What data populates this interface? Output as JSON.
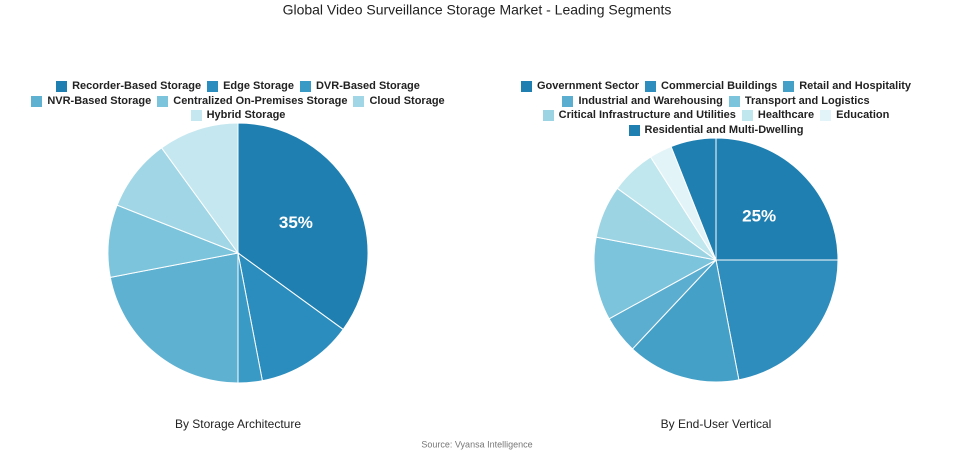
{
  "title": "Global Video Surveillance Storage Market - Leading Segments",
  "source": "Source: Vyansa Intelligence",
  "chart_data": [
    {
      "type": "pie",
      "subtitle": "By Storage Architecture",
      "categories": [
        "Recorder-Based Storage",
        "Edge Storage",
        "DVR-Based Storage",
        "NVR-Based Storage",
        "Centralized On-Premises Storage",
        "Cloud Storage",
        "Hybrid Storage"
      ],
      "values": [
        35,
        12,
        3,
        22,
        9,
        9,
        10
      ],
      "value_labels": [
        "35%",
        null,
        null,
        null,
        null,
        null,
        null
      ],
      "colors": [
        "#1f7fb0",
        "#2b8dbd",
        "#3a9ac6",
        "#5fb1d2",
        "#7cc4dc",
        "#a0d6e5",
        "#c5e7ef"
      ]
    },
    {
      "type": "pie",
      "subtitle": "By End-User Vertical",
      "categories": [
        "Government Sector",
        "Commercial Buildings",
        "Retail and Hospitality",
        "Industrial and Warehousing",
        "Transport and Logistics",
        "Critical Infrastructure and Utilities",
        "Healthcare",
        "Education",
        "Residential and Multi-Dwelling"
      ],
      "values": [
        25,
        22,
        15,
        5,
        11,
        7,
        6,
        3,
        6
      ],
      "value_labels": [
        "25%",
        null,
        null,
        null,
        null,
        null,
        null,
        null,
        null
      ],
      "colors": [
        "#1f7fb0",
        "#2e8dbd",
        "#45a0c8",
        "#5caed1",
        "#7cc3dc",
        "#9dd4e4",
        "#c0e6ee",
        "#e3f4f8",
        "#1f7fb0"
      ]
    }
  ]
}
